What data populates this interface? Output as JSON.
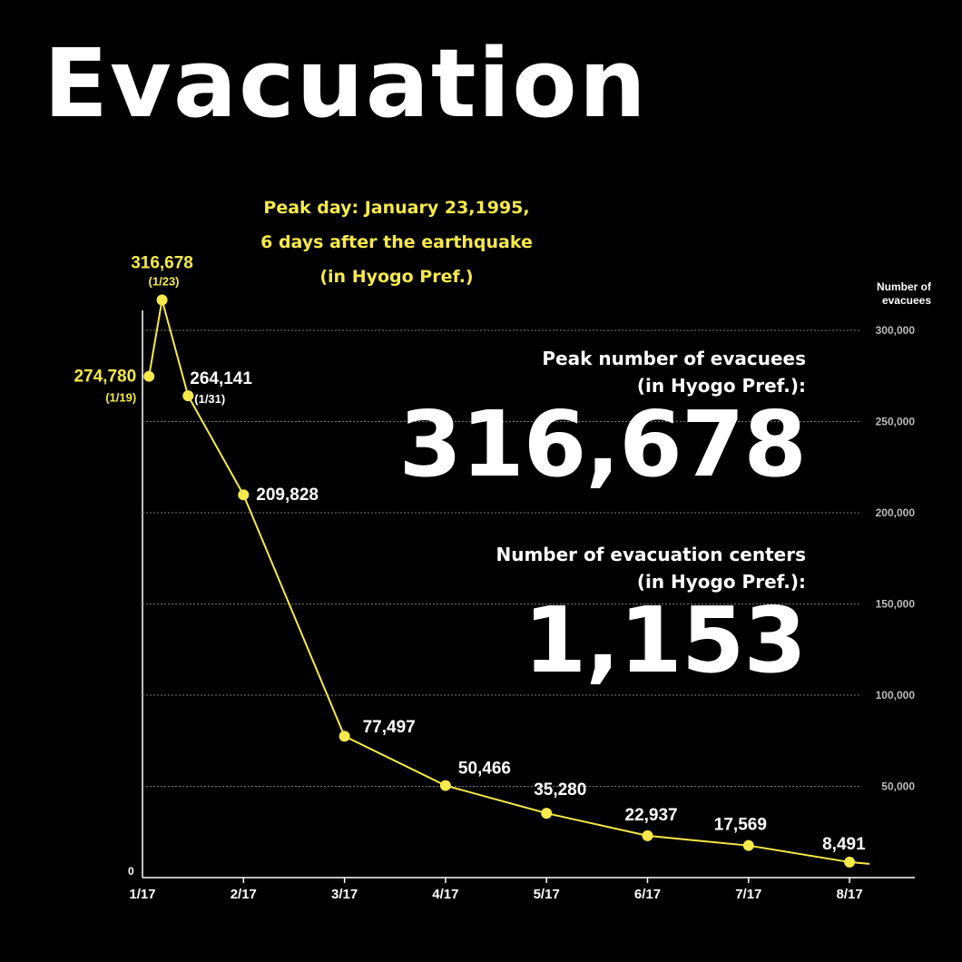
{
  "title": "Evacuation",
  "peak_day": {
    "lines": [
      "Peak day: January 23,1995,",
      "6 days after the earthquake",
      "(in Hyogo Pref.)"
    ]
  },
  "stats": [
    {
      "label_lines": [
        "Peak number of evacuees",
        "(in Hyogo Pref.):"
      ],
      "value": "316,678"
    },
    {
      "label_lines": [
        "Number of evacuation centers",
        "(in Hyogo Pref.):"
      ],
      "value": "1,153"
    }
  ],
  "colors": {
    "background": "#000000",
    "line": "#f7e94b",
    "highlight_text": "#f7e94b",
    "text": "#ffffff",
    "grid": "#777777"
  },
  "chart_data": {
    "type": "line",
    "title": "",
    "xlabel": "",
    "ylabel": "Number of evacuees",
    "ylabel_lines": [
      "Number of",
      "evacuees"
    ],
    "y_axis_position": "right",
    "ylim": [
      0,
      300000
    ],
    "yticks": [
      0,
      50000,
      100000,
      150000,
      200000,
      250000,
      300000
    ],
    "ytick_labels": [
      "0",
      "50,000",
      "100,000",
      "150,000",
      "200,000",
      "250,000",
      "300,000"
    ],
    "xticks": [
      "1/17",
      "2/17",
      "3/17",
      "4/17",
      "5/17",
      "6/17",
      "7/17",
      "8/17"
    ],
    "grid": true,
    "series": [
      {
        "points": [
          {
            "x": "1/19",
            "y": 274780,
            "label": "274,780",
            "sublabel": "(1/19)",
            "highlight": true
          },
          {
            "x": "1/23",
            "y": 316678,
            "label": "316,678",
            "sublabel": "(1/23)",
            "highlight": true
          },
          {
            "x": "1/31",
            "y": 264141,
            "label": "264,141",
            "sublabel": "(1/31)",
            "highlight": false
          },
          {
            "x": "2/17",
            "y": 209828,
            "label": "209,828",
            "highlight": false
          },
          {
            "x": "3/17",
            "y": 77497,
            "label": "77,497",
            "highlight": false
          },
          {
            "x": "4/17",
            "y": 50466,
            "label": "50,466",
            "highlight": false
          },
          {
            "x": "5/17",
            "y": 35280,
            "label": "35,280",
            "highlight": false
          },
          {
            "x": "6/17",
            "y": 22937,
            "label": "22,937",
            "highlight": false
          },
          {
            "x": "7/17",
            "y": 17569,
            "label": "17,569",
            "highlight": false
          },
          {
            "x": "8/17",
            "y": 8491,
            "label": "8,491",
            "highlight": false
          }
        ]
      }
    ]
  }
}
